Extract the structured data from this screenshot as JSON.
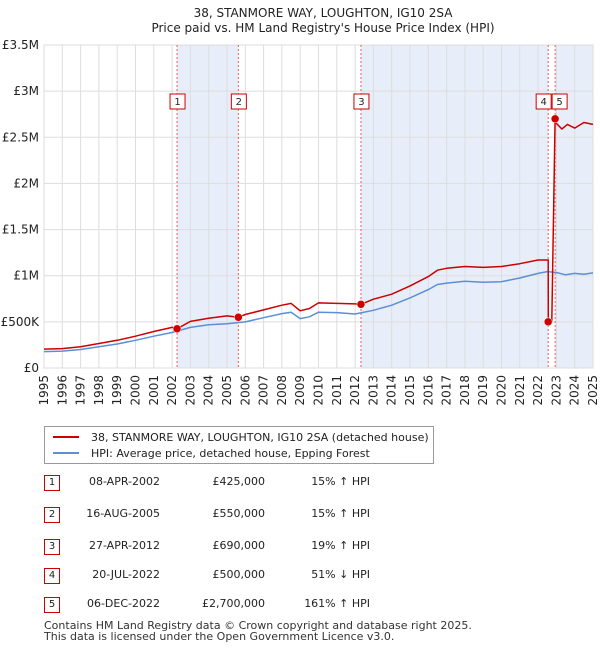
{
  "chart_data": {
    "type": "line",
    "title": "38, STANMORE WAY, LOUGHTON, IG10 2SA",
    "subtitle": "Price paid vs. HM Land Registry's House Price Index (HPI)",
    "xlabel": "",
    "ylabel": "",
    "xlim": [
      1995,
      2025
    ],
    "ylim": [
      0,
      3500000
    ],
    "y_ticks": [
      0,
      500000,
      1000000,
      1500000,
      2000000,
      2500000,
      3000000,
      3500000
    ],
    "y_tick_labels": [
      "£0",
      "£500K",
      "£1M",
      "£1.5M",
      "£2M",
      "£2.5M",
      "£3M",
      "£3.5M"
    ],
    "x_ticks": [
      1995,
      1996,
      1997,
      1998,
      1999,
      2000,
      2001,
      2002,
      2003,
      2004,
      2005,
      2006,
      2007,
      2008,
      2009,
      2010,
      2011,
      2012,
      2013,
      2014,
      2015,
      2016,
      2017,
      2018,
      2019,
      2020,
      2021,
      2022,
      2023,
      2024,
      2025
    ],
    "x_tick_labels": [
      "1995",
      "1996",
      "1997",
      "1998",
      "1999",
      "2000",
      "2001",
      "2002",
      "2003",
      "2004",
      "2005",
      "2006",
      "2007",
      "2008",
      "2009",
      "2010",
      "2011",
      "2012",
      "2013",
      "2014",
      "2015",
      "2016",
      "2017",
      "2018",
      "2019",
      "2020",
      "2021",
      "2022",
      "2023",
      "2024",
      "2025"
    ],
    "shaded_spans": [
      [
        2002.27,
        2005.62
      ],
      [
        2012.32,
        2022.55
      ],
      [
        2022.93,
        2025
      ]
    ],
    "series": [
      {
        "name": "38, STANMORE WAY, LOUGHTON, IG10 2SA (detached house)",
        "color": "#cc0000",
        "x": [
          1995,
          1996,
          1997,
          1998,
          1999,
          2000,
          2001,
          2002,
          2002.27,
          2003,
          2004,
          2005,
          2005.62,
          2006,
          2007,
          2008,
          2008.5,
          2009,
          2009.5,
          2010,
          2011,
          2012,
          2012.32,
          2013,
          2014,
          2015,
          2016,
          2016.5,
          2017,
          2018,
          2019,
          2020,
          2021,
          2022,
          2022.55,
          2022.56,
          2022.75,
          2022.93,
          2023,
          2023.3,
          2023.6,
          2024,
          2024.5,
          2025
        ],
        "values": [
          205000,
          210000,
          230000,
          265000,
          300000,
          345000,
          395000,
          440000,
          425000,
          505000,
          540000,
          565000,
          550000,
          580000,
          630000,
          680000,
          700000,
          620000,
          645000,
          705000,
          700000,
          695000,
          690000,
          745000,
          800000,
          890000,
          990000,
          1060000,
          1080000,
          1100000,
          1090000,
          1100000,
          1130000,
          1170000,
          1170000,
          500000,
          500000,
          2700000,
          2650000,
          2590000,
          2640000,
          2600000,
          2660000,
          2640000
        ]
      },
      {
        "name": "HPI: Average price, detached house, Epping Forest",
        "color": "#5b8fd6",
        "x": [
          1995,
          1996,
          1997,
          1998,
          1999,
          2000,
          2001,
          2002,
          2003,
          2004,
          2005,
          2006,
          2007,
          2008,
          2008.5,
          2009,
          2009.5,
          2010,
          2011,
          2012,
          2013,
          2014,
          2015,
          2016,
          2016.5,
          2017,
          2018,
          2019,
          2020,
          2021,
          2022,
          2022.5,
          2023,
          2023.5,
          2024,
          2024.5,
          2025
        ],
        "values": [
          178000,
          183000,
          200000,
          230000,
          260000,
          300000,
          345000,
          385000,
          440000,
          468000,
          480000,
          500000,
          545000,
          590000,
          605000,
          535000,
          555000,
          605000,
          600000,
          585000,
          625000,
          680000,
          760000,
          850000,
          905000,
          920000,
          940000,
          930000,
          935000,
          975000,
          1025000,
          1045000,
          1035000,
          1010000,
          1025000,
          1015000,
          1030000
        ]
      }
    ],
    "sales": [
      {
        "n": "1",
        "x": 2002.27,
        "price": 425000,
        "date": "08-APR-2002",
        "price_label": "£425,000",
        "hpi": "15% ↑ HPI"
      },
      {
        "n": "2",
        "x": 2005.62,
        "price": 550000,
        "date": "16-AUG-2005",
        "price_label": "£550,000",
        "hpi": "15% ↑ HPI"
      },
      {
        "n": "3",
        "x": 2012.32,
        "price": 690000,
        "date": "27-APR-2012",
        "price_label": "£690,000",
        "hpi": "19% ↑ HPI"
      },
      {
        "n": "4",
        "x": 2022.55,
        "price": 500000,
        "date": "20-JUL-2022",
        "price_label": "£500,000",
        "hpi": "51% ↓ HPI"
      },
      {
        "n": "5",
        "x": 2022.93,
        "price": 2700000,
        "date": "06-DEC-2022",
        "price_label": "£2,700,000",
        "hpi": "161% ↑ HPI"
      }
    ]
  },
  "legend": {
    "property_label": "38, STANMORE WAY, LOUGHTON, IG10 2SA (detached house)",
    "hpi_label": "HPI: Average price, detached house, Epping Forest"
  },
  "footer": {
    "line1": "Contains HM Land Registry data © Crown copyright and database right 2025.",
    "line2": "This data is licensed under the Open Government Licence v3.0."
  },
  "colors": {
    "property": "#cc0000",
    "hpi": "#5b8fd6",
    "shade": "#e8eef9",
    "grid": "#dddddd",
    "vline": "#e06060"
  }
}
